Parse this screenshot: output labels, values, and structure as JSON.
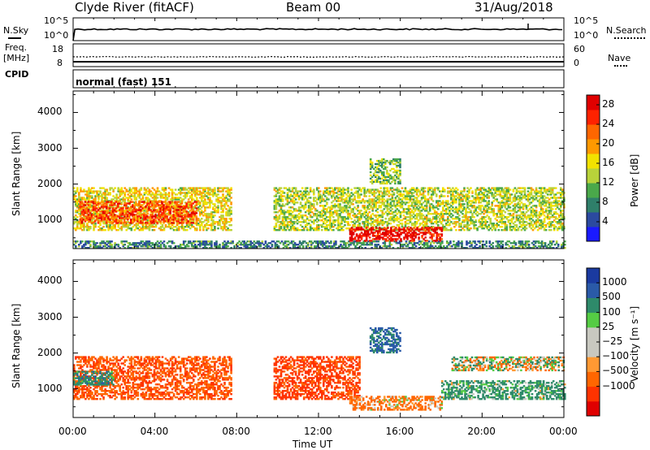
{
  "header": {
    "station": "Clyde River (fitACF)",
    "beam": "Beam 00",
    "date": "31/Aug/2018"
  },
  "panel_labels": {
    "nsky": "N.Sky",
    "nsearch": "N.Search",
    "freq_line1": "Freq.",
    "freq_line2": "[MHz]",
    "nave": "Nave",
    "cpid": "CPID",
    "cpid_value": "normal (fast) 151"
  },
  "strip_ticks": {
    "noise_left_top": "10^5",
    "noise_left_bottom": "10^0",
    "noise_right_top": "10^5",
    "noise_right_bottom": "10^0",
    "freq_left_top": "18",
    "freq_left_bottom": "8",
    "nave_right_top": "60",
    "nave_right_bottom": "0"
  },
  "colors": {
    "power_scale": [
      "#1a1aff",
      "#2b4aa0",
      "#2f7f6a",
      "#4aa84a",
      "#b8d23a",
      "#f2e200",
      "#ff9900",
      "#ff6600",
      "#ff2200",
      "#e00000"
    ],
    "velocity_scale": [
      "#e00000",
      "#ff3300",
      "#ff6600",
      "#ff9933",
      "#c8c8c0",
      "#c8c8c0",
      "#55cc44",
      "#2e8a6a",
      "#2a5aa8",
      "#1a3aa0"
    ]
  },
  "chart_data": [
    {
      "type": "heatmap",
      "title": "",
      "xlabel": "Time UT",
      "ylabel": "Slant Range [km]",
      "x_ticks": [
        "00:00",
        "04:00",
        "08:00",
        "12:00",
        "16:00",
        "20:00",
        "00:00"
      ],
      "xlim": [
        0,
        24
      ],
      "y_ticks": [
        "1000",
        "2000",
        "3000",
        "4000"
      ],
      "ylim": [
        200,
        4600
      ],
      "colorbar": {
        "label": "Power [dB]",
        "ticks": [
          "4",
          "8",
          "12",
          "16",
          "20",
          "24",
          "28"
        ],
        "range": [
          0,
          30
        ]
      },
      "features": [
        {
          "t0": 0.0,
          "t1": 7.7,
          "r0": 700,
          "r1": 1900,
          "value": 16
        },
        {
          "t0": 0.3,
          "t1": 6.0,
          "r0": 900,
          "r1": 1500,
          "value": 24
        },
        {
          "t0": 0.0,
          "t1": 24.0,
          "r0": 200,
          "r1": 400,
          "value": 8
        },
        {
          "t0": 9.8,
          "t1": 24.0,
          "r0": 700,
          "r1": 1900,
          "value": 14
        },
        {
          "t0": 13.5,
          "t1": 18.0,
          "r0": 400,
          "r1": 800,
          "value": 28
        },
        {
          "t0": 14.5,
          "t1": 16.0,
          "r0": 2000,
          "r1": 2700,
          "value": 12
        }
      ]
    },
    {
      "type": "heatmap",
      "title": "",
      "xlabel": "Time UT",
      "ylabel": "Slant Range [km]",
      "x_ticks": [
        "00:00",
        "04:00",
        "08:00",
        "12:00",
        "16:00",
        "20:00",
        "00:00"
      ],
      "xlim": [
        0,
        24
      ],
      "y_ticks": [
        "1000",
        "2000",
        "3000",
        "4000"
      ],
      "ylim": [
        200,
        4600
      ],
      "colorbar": {
        "label": "Velocity [m s⁻¹]",
        "ticks": [
          "1000",
          "500",
          "100",
          "25",
          "−25",
          "−100",
          "−500",
          "−1000"
        ],
        "range": [
          -1200,
          1200
        ]
      },
      "features": [
        {
          "t0": 0.0,
          "t1": 7.7,
          "r0": 700,
          "r1": 1900,
          "value": -450
        },
        {
          "t0": 0.0,
          "t1": 2.0,
          "r0": 1100,
          "r1": 1500,
          "value": 300
        },
        {
          "t0": 9.8,
          "t1": 14.0,
          "r0": 700,
          "r1": 1900,
          "value": -600
        },
        {
          "t0": 13.5,
          "t1": 18.0,
          "r0": 400,
          "r1": 800,
          "value": -200
        },
        {
          "t0": 18.0,
          "t1": 24.0,
          "r0": 700,
          "r1": 1200,
          "value": 200
        },
        {
          "t0": 18.5,
          "t1": 24.0,
          "r0": 1500,
          "r1": 1900,
          "value": 0
        },
        {
          "t0": 14.5,
          "t1": 16.0,
          "r0": 2000,
          "r1": 2700,
          "value": 600
        }
      ]
    }
  ]
}
